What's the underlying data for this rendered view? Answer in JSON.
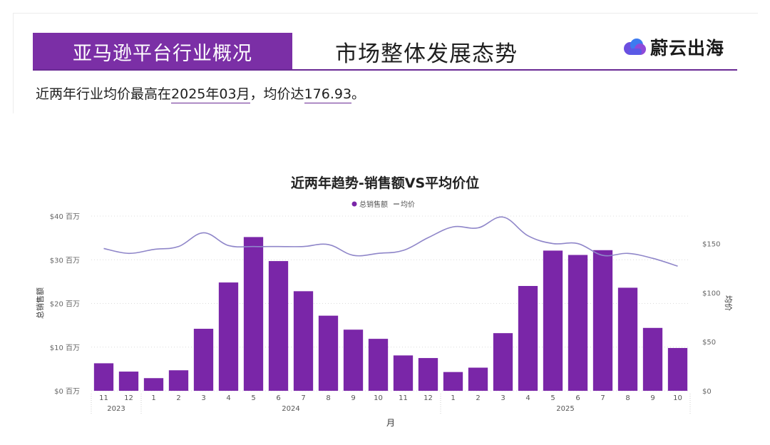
{
  "header": {
    "section_title": "亚马逊平台行业概况",
    "page_title": "市场整体发展态势",
    "brand": "蔚云出海",
    "brand_icon": "cloud-logo-icon"
  },
  "summary": {
    "prefix": "近两年行业均价最高在",
    "peak_month": "2025年03月",
    "middle": "，均价达",
    "peak_price": "176.93",
    "suffix": "。"
  },
  "colors": {
    "accent": "#7b2fa6",
    "bar": "#7a26a8",
    "line": "#8f86c9"
  },
  "chart_data": {
    "type": "bar",
    "title": "近两年趋势-销售额VS平均价位",
    "legend": [
      "总销售额",
      "均价"
    ],
    "legend_placement": "top-center",
    "xlabel": "月",
    "ylabel_left": "总销售额",
    "ylabel_right": "均价",
    "grid": true,
    "years": [
      {
        "label": "2023",
        "span": [
          0,
          1
        ]
      },
      {
        "label": "2024",
        "span": [
          2,
          13
        ]
      },
      {
        "label": "2025",
        "span": [
          14,
          23
        ]
      }
    ],
    "categories": [
      "11",
      "12",
      "1",
      "2",
      "3",
      "4",
      "5",
      "6",
      "7",
      "8",
      "9",
      "10",
      "11",
      "12",
      "1",
      "2",
      "3",
      "4",
      "5",
      "6",
      "7",
      "8",
      "9",
      "10"
    ],
    "left_axis": {
      "ticks": [
        "$0 百万",
        "$10 百万",
        "$20 百万",
        "$30 百万",
        "$40 百万"
      ],
      "range": [
        0,
        40
      ],
      "unit": "百万"
    },
    "right_axis": {
      "ticks": [
        "$0",
        "$50",
        "$100",
        "$150"
      ],
      "range": [
        0,
        178
      ]
    },
    "series": [
      {
        "name": "总销售额",
        "kind": "bar",
        "values": [
          6.3,
          4.4,
          2.9,
          4.7,
          14.2,
          24.8,
          35.2,
          29.7,
          22.8,
          17.2,
          14.0,
          11.9,
          8.1,
          7.5,
          4.3,
          5.3,
          13.2,
          24.0,
          32.1,
          31.1,
          32.2,
          23.6,
          14.4,
          9.8
        ]
      },
      {
        "name": "均价",
        "kind": "line",
        "values": [
          145,
          140,
          144,
          147,
          161,
          148,
          147,
          147,
          147,
          149,
          138,
          140,
          143,
          156,
          167,
          166,
          177,
          158,
          150,
          150,
          138,
          140,
          135,
          127
        ]
      }
    ]
  }
}
